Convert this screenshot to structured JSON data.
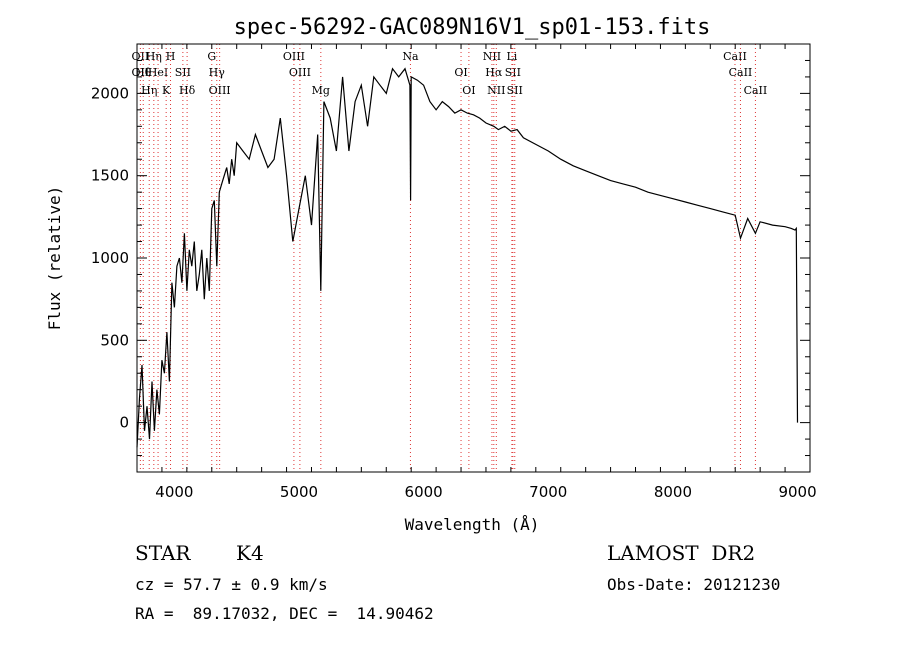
{
  "chart_data": {
    "type": "line",
    "title": "spec-56292-GAC089N16V1_sp01-153.fits",
    "xlabel": "Wavelength (Å)",
    "ylabel": "Flux (relative)",
    "xlim": [
      3700,
      9100
    ],
    "ylim": [
      -300,
      2300
    ],
    "xticks": [
      4000,
      5000,
      6000,
      7000,
      8000,
      9000
    ],
    "yticks": [
      0,
      500,
      1000,
      1500,
      2000
    ],
    "grid": false,
    "series": [
      {
        "x": [
          3700,
          3720,
          3740,
          3760,
          3780,
          3800,
          3820,
          3840,
          3860,
          3880,
          3900,
          3920,
          3940,
          3960,
          3980,
          4000,
          4020,
          4040,
          4060,
          4080,
          4100,
          4120,
          4140,
          4160,
          4180,
          4200,
          4220,
          4240,
          4260,
          4280,
          4300,
          4320,
          4340,
          4360,
          4380,
          4400,
          4420,
          4440,
          4460,
          4480,
          4500,
          4550,
          4600,
          4650,
          4700,
          4750,
          4800,
          4850,
          4900,
          4950,
          5000,
          5050,
          5100,
          5150,
          5175,
          5200,
          5250,
          5300,
          5350,
          5400,
          5450,
          5500,
          5550,
          5600,
          5650,
          5700,
          5750,
          5800,
          5850,
          5890,
          5895,
          5900,
          5950,
          6000,
          6050,
          6100,
          6150,
          6200,
          6250,
          6300,
          6350,
          6400,
          6450,
          6500,
          6563,
          6600,
          6650,
          6700,
          6750,
          6800,
          6900,
          7000,
          7100,
          7200,
          7300,
          7400,
          7500,
          7600,
          7700,
          7800,
          7900,
          8000,
          8100,
          8200,
          8300,
          8400,
          8500,
          8542,
          8600,
          8662,
          8700,
          8800,
          8900,
          8950,
          8980,
          8990,
          9000
        ],
        "y": [
          -150,
          150,
          350,
          -50,
          100,
          -100,
          250,
          -50,
          200,
          50,
          380,
          300,
          550,
          250,
          850,
          700,
          950,
          1000,
          850,
          1150,
          800,
          1050,
          950,
          1100,
          800,
          900,
          1050,
          750,
          1000,
          800,
          1300,
          1350,
          950,
          1400,
          1450,
          1500,
          1550,
          1450,
          1600,
          1500,
          1700,
          1650,
          1600,
          1750,
          1650,
          1550,
          1600,
          1850,
          1500,
          1100,
          1300,
          1500,
          1200,
          1750,
          800,
          1950,
          1850,
          1650,
          2100,
          1650,
          1950,
          2050,
          1800,
          2100,
          2050,
          2000,
          2150,
          2100,
          2150,
          2050,
          1350,
          2100,
          2080,
          2050,
          1950,
          1900,
          1950,
          1920,
          1880,
          1900,
          1880,
          1870,
          1850,
          1820,
          1800,
          1780,
          1800,
          1770,
          1780,
          1730,
          1690,
          1650,
          1600,
          1560,
          1530,
          1500,
          1470,
          1450,
          1430,
          1400,
          1380,
          1360,
          1340,
          1320,
          1300,
          1280,
          1260,
          1120,
          1240,
          1150,
          1220,
          1200,
          1190,
          1180,
          1170,
          1180,
          0
        ]
      }
    ],
    "lines": [
      {
        "x": 3727,
        "labels": [
          "OII",
          "OII"
        ]
      },
      {
        "x": 3750,
        "labels": [
          "Hθ"
        ]
      },
      {
        "x": 3798,
        "labels": [
          "Hη"
        ]
      },
      {
        "x": 3835,
        "labels": [
          "Hη"
        ]
      },
      {
        "x": 3869,
        "labels": [
          "HeI"
        ]
      },
      {
        "x": 3934,
        "labels": [
          "K"
        ]
      },
      {
        "x": 3969,
        "labels": [
          "H"
        ]
      },
      {
        "x": 4068,
        "labels": [
          "SII"
        ]
      },
      {
        "x": 4102,
        "labels": [
          "Hδ"
        ]
      },
      {
        "x": 4300,
        "labels": [
          "G"
        ]
      },
      {
        "x": 4340,
        "labels": [
          "Hγ"
        ]
      },
      {
        "x": 4363,
        "labels": [
          "OIII"
        ]
      },
      {
        "x": 4959,
        "labels": [
          "OIII"
        ]
      },
      {
        "x": 5007,
        "labels": [
          "OIII"
        ]
      },
      {
        "x": 5175,
        "labels": [
          "Mg"
        ]
      },
      {
        "x": 5894,
        "labels": [
          "Na"
        ]
      },
      {
        "x": 6300,
        "labels": [
          "OI"
        ]
      },
      {
        "x": 6363,
        "labels": [
          "OI"
        ]
      },
      {
        "x": 6548,
        "labels": [
          "NII"
        ]
      },
      {
        "x": 6563,
        "labels": [
          "Hα"
        ]
      },
      {
        "x": 6583,
        "labels": [
          "NII"
        ]
      },
      {
        "x": 6708,
        "labels": [
          "Li"
        ]
      },
      {
        "x": 6716,
        "labels": [
          "SII"
        ]
      },
      {
        "x": 6731,
        "labels": [
          "SII"
        ]
      },
      {
        "x": 8498,
        "labels": [
          "CaII"
        ]
      },
      {
        "x": 8542,
        "labels": [
          "CaII"
        ]
      },
      {
        "x": 8662,
        "labels": [
          "CaII"
        ]
      }
    ]
  },
  "info": {
    "object_class": "STAR",
    "subclass": "K4",
    "survey": "LAMOST  DR2",
    "redshift": "cz = 57.7 ± 0.9 km/s",
    "obs_date": "Obs-Date: 20121230",
    "coords": "RA =  89.17032, DEC =  14.90462"
  }
}
